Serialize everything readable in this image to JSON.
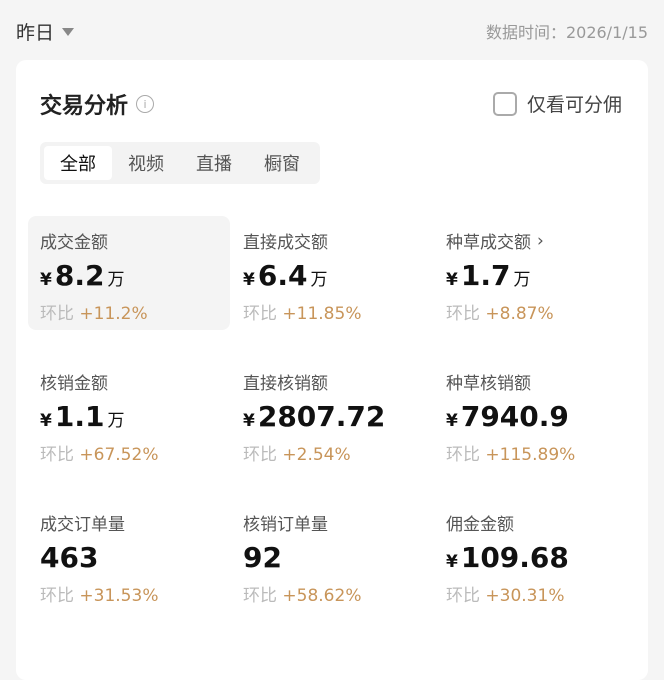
{
  "header": {
    "period": "昨日",
    "data_time": "数据时间：2026/1/15"
  },
  "card": {
    "title": "交易分析",
    "checkbox_label": "仅看可分佣",
    "checkbox_checked": false,
    "tabs": [
      {
        "label": "全部",
        "active": true
      },
      {
        "label": "视频"
      },
      {
        "label": "直播"
      },
      {
        "label": "橱窗"
      }
    ]
  },
  "change_label": "环比",
  "metrics": [
    {
      "label": "成交金额",
      "currency": "¥",
      "value": "8.2",
      "unit": "万",
      "change": "+11.2%"
    },
    {
      "label": "直接成交额",
      "currency": "¥",
      "value": "6.4",
      "unit": "万",
      "change": "+11.85%"
    },
    {
      "label": "种草成交额",
      "currency": "¥",
      "value": "1.7",
      "unit": "万",
      "change": "+8.87%",
      "arrow": "›"
    },
    {
      "label": "核销金额",
      "currency": "¥",
      "value": "1.1",
      "unit": "万",
      "change": "+67.52%"
    },
    {
      "label": "直接核销额",
      "currency": "¥",
      "value": "2807.72",
      "unit": "",
      "change": "+2.54%"
    },
    {
      "label": "种草核销额",
      "currency": "¥",
      "value": "7940.9",
      "unit": "",
      "change": "+115.89%"
    },
    {
      "label": "成交订单量",
      "currency": "",
      "value": "463",
      "unit": "",
      "change": "+31.53%"
    },
    {
      "label": "核销订单量",
      "currency": "",
      "value": "92",
      "unit": "",
      "change": "+58.62%"
    },
    {
      "label": "佣金金额",
      "currency": "¥",
      "value": "109.68",
      "unit": "",
      "change": "+30.31%"
    }
  ],
  "colors": {
    "positive": "#c8955a",
    "selected_bg": "#f4f4f4"
  }
}
